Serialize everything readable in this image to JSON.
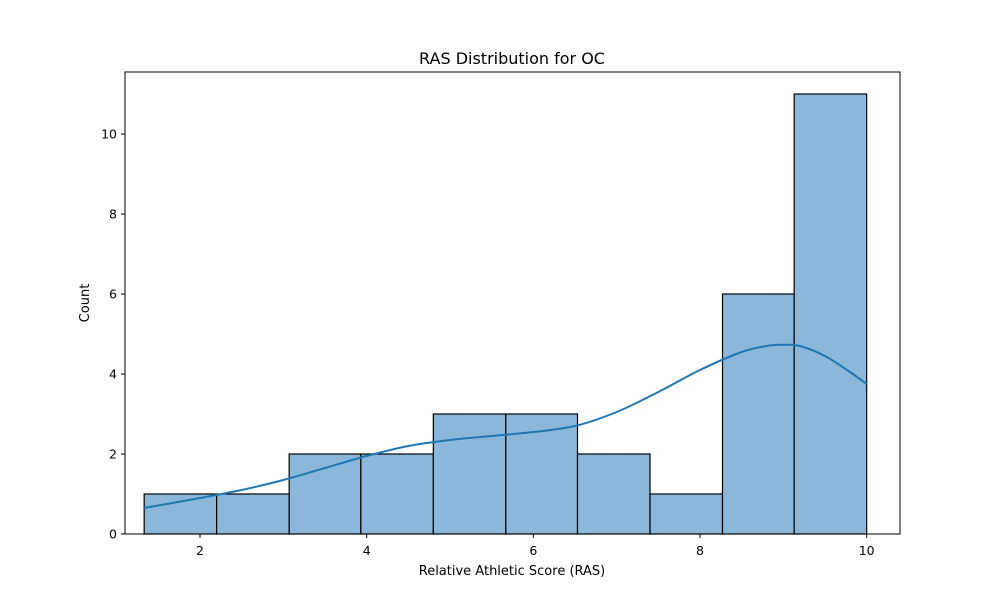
{
  "chart_data": {
    "type": "bar",
    "subtype": "histogram-with-kde",
    "title": "RAS Distribution for OC",
    "xlabel": "Relative Athletic Score (RAS)",
    "ylabel": "Count",
    "xlim": [
      1.1,
      10.4
    ],
    "ylim": [
      0,
      11.55
    ],
    "x_ticks": [
      2,
      4,
      6,
      8,
      10
    ],
    "y_ticks": [
      0,
      2,
      4,
      6,
      8,
      10
    ],
    "bins": [
      {
        "start": 1.33,
        "end": 2.2,
        "count": 1
      },
      {
        "start": 2.2,
        "end": 3.07,
        "count": 1
      },
      {
        "start": 3.07,
        "end": 3.93,
        "count": 2
      },
      {
        "start": 3.93,
        "end": 4.8,
        "count": 2
      },
      {
        "start": 4.8,
        "end": 5.67,
        "count": 3
      },
      {
        "start": 5.67,
        "end": 6.53,
        "count": 3
      },
      {
        "start": 6.53,
        "end": 7.4,
        "count": 2
      },
      {
        "start": 7.4,
        "end": 8.27,
        "count": 1
      },
      {
        "start": 8.27,
        "end": 9.13,
        "count": 6
      },
      {
        "start": 9.13,
        "end": 10.0,
        "count": 11
      }
    ],
    "kde": {
      "x": [
        1.33,
        2.0,
        2.5,
        3.0,
        3.5,
        4.0,
        4.5,
        5.0,
        5.5,
        6.0,
        6.5,
        7.0,
        7.5,
        8.0,
        8.5,
        8.8,
        9.0,
        9.2,
        9.5,
        9.8,
        10.0
      ],
      "y": [
        0.65,
        0.9,
        1.1,
        1.35,
        1.65,
        1.95,
        2.2,
        2.35,
        2.45,
        2.55,
        2.7,
        3.05,
        3.55,
        4.1,
        4.55,
        4.7,
        4.73,
        4.7,
        4.45,
        4.05,
        3.75
      ]
    },
    "bar_color": "#8bb8da",
    "bar_edge_color": "#000000",
    "kde_color": "#1f77b4",
    "grid": false,
    "legend": "none"
  }
}
